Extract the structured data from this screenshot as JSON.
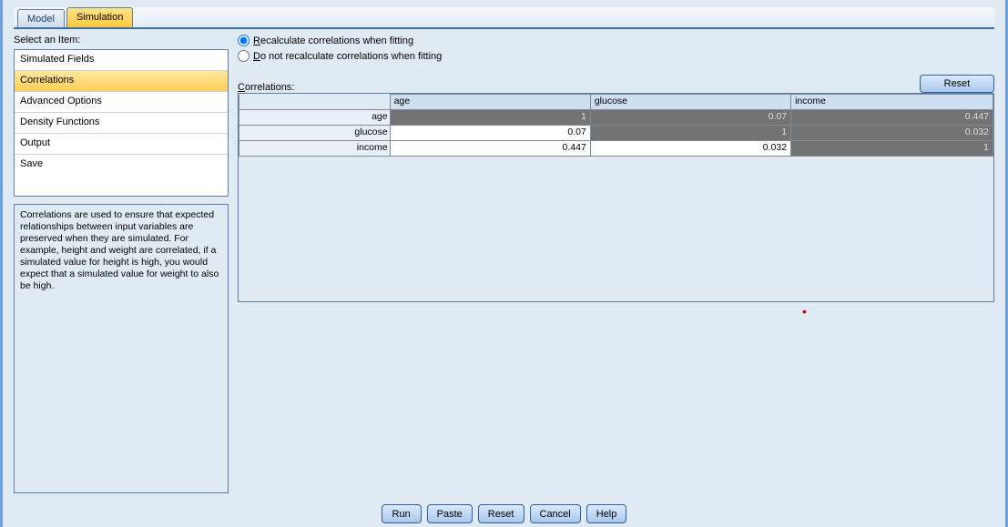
{
  "tabs": {
    "model": "Model",
    "simulation": "Simulation"
  },
  "left": {
    "select_label": "Select an Item:",
    "items": [
      "Simulated Fields",
      "Correlations",
      "Advanced Options",
      "Density Functions",
      "Output",
      "Save"
    ],
    "selected_index": 1,
    "description": "Correlations are used to ensure that expected relationships between input variables are preserved when they are simulated.  For example, height and weight are correlated, if a simulated value for height is high, you would expect that a simulated value for weight to also be high."
  },
  "right": {
    "radio": {
      "recalc_prefix": "R",
      "recalc_rest": "ecalculate correlations when fitting",
      "no_prefix": "D",
      "no_rest": "o not recalculate correlations when fitting",
      "selected": "recalc"
    },
    "corr_label_prefix": "C",
    "corr_label_rest": "orrelations:",
    "reset_button": "Reset",
    "table": {
      "columns": [
        "age",
        "glucose",
        "income"
      ],
      "row_labels": [
        "age",
        "glucose",
        "income"
      ],
      "cells": [
        [
          "1",
          "0.07",
          "0.447"
        ],
        [
          "0.07",
          "1",
          "0.032"
        ],
        [
          "0.447",
          "0.032",
          "1"
        ]
      ],
      "shaded": [
        [
          true,
          true,
          true
        ],
        [
          false,
          true,
          true
        ],
        [
          false,
          false,
          true
        ]
      ],
      "header_bg": "#cddff0",
      "row_header_bg": "#e9f0f8",
      "shaded_bg": "#737373",
      "cell_bg": "#ffffff",
      "col_widths_pct": [
        20,
        26.6,
        26.6,
        26.8
      ]
    }
  },
  "footer": [
    "Run",
    "Paste",
    "Reset",
    "Cancel",
    "Help"
  ],
  "colors": {
    "panel_bg": "#e0eaf3",
    "tab_active_bg_top": "#ffe48a",
    "tab_active_bg_bot": "#ffc83c",
    "button_bg_top": "#dbe9f9",
    "button_bg_bot": "#a9c8ed",
    "border_blue": "#3a6ea5"
  }
}
